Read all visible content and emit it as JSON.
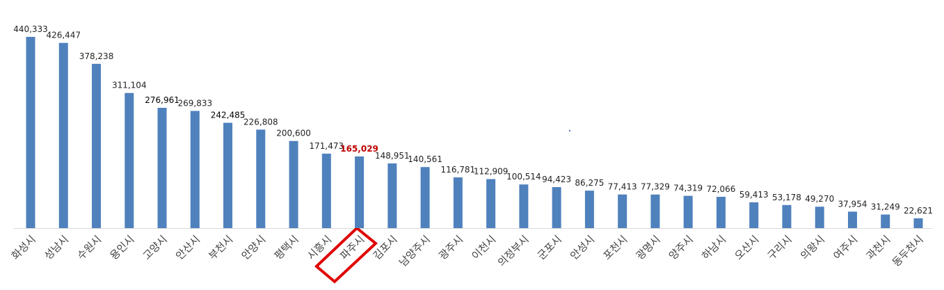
{
  "chart_data": {
    "type": "bar",
    "categories": [
      "화성시",
      "성남시",
      "수원시",
      "용인시",
      "고양시",
      "안산시",
      "부천시",
      "안양시",
      "평택시",
      "시흥시",
      "파주시",
      "김포시",
      "남양주시",
      "광주시",
      "이천시",
      "의정부시",
      "군포시",
      "안성시",
      "포천시",
      "광명시",
      "양주시",
      "하남시",
      "오산시",
      "구리시",
      "의왕시",
      "여주시",
      "과천시",
      "동두천시"
    ],
    "values": [
      440333,
      426447,
      378238,
      311104,
      276961,
      269833,
      242485,
      226808,
      200600,
      171473,
      165029,
      148951,
      140561,
      116781,
      112909,
      100514,
      94423,
      86275,
      77413,
      77329,
      74319,
      72066,
      59413,
      53178,
      49270,
      37954,
      31249,
      22621
    ],
    "value_labels": [
      "440,333",
      "426,447",
      "378,238",
      "311,104",
      "276,961",
      "269,833",
      "242,485",
      "226,808",
      "200,600",
      "171,473",
      "165,029",
      "148,951",
      "140,561",
      "116,781",
      "112,909",
      "100,514",
      "94,423",
      "86,275",
      "77,413",
      "77,329",
      "74,319",
      "72,066",
      "59,413",
      "53,178",
      "49,270",
      "37,954",
      "31,249",
      "22,621"
    ],
    "value_label_colors": [
      "#222",
      "#222",
      "#222",
      "#222",
      "#000",
      "#222",
      "#000",
      "#222",
      "#222",
      "#222",
      "#c00000",
      "#222",
      "#222",
      "#222",
      "#222",
      "#222",
      "#222",
      "#222",
      "#222",
      "#222",
      "#222",
      "#222",
      "#222",
      "#222",
      "#222",
      "#222",
      "#222",
      "#222"
    ],
    "color": "#4f81bd"
  }
}
